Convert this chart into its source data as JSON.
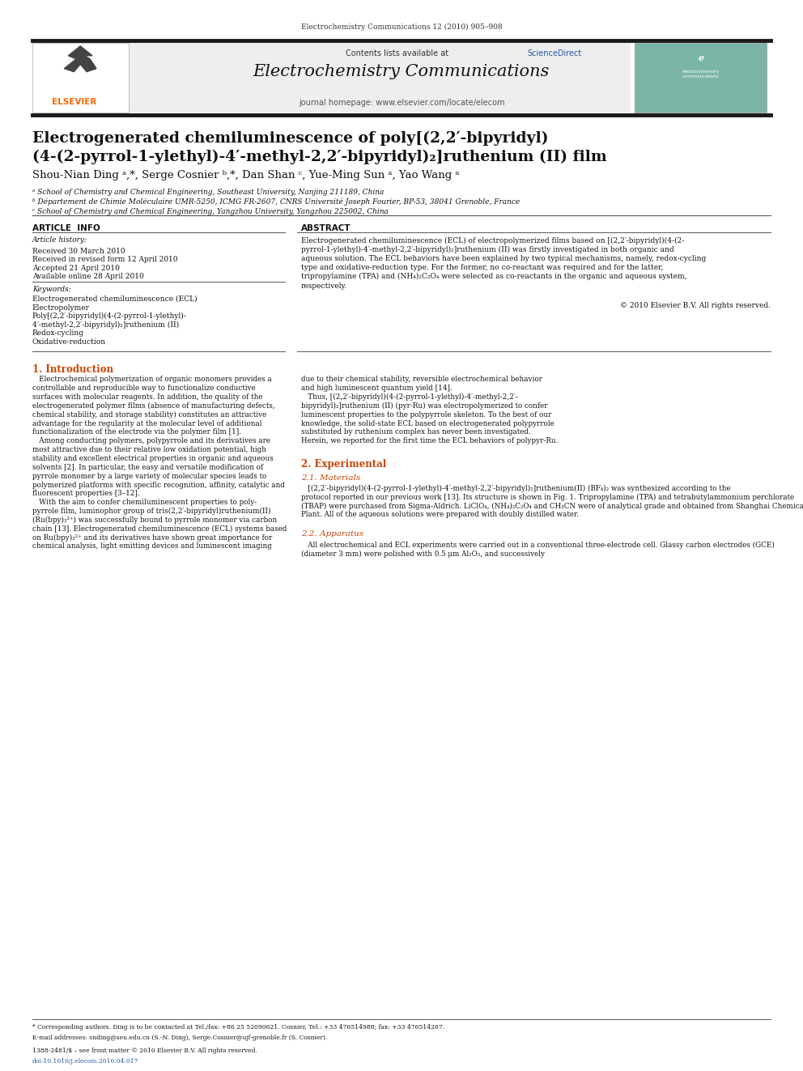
{
  "page_width": 9.92,
  "page_height": 13.23,
  "bg_color": "#ffffff",
  "journal_header": "Electrochemistry Communications 12 (2010) 905–908",
  "journal_name": "Electrochemistry Communications",
  "contents_line": "Contents lists available at ScienceDirect",
  "sciencedirect_color": "#2255aa",
  "journal_homepage": "journal homepage: www.elsevier.com/locate/elecom",
  "header_bg": "#eeeeee",
  "top_bar_color": "#1a1a1a",
  "elsevier_color": "#ff6600",
  "title_line1": "Electrogenerated chemiluminescence of poly[(2,2′-bipyridyl)",
  "title_line2": "(4-(2-pyrrol-1-ylethyl)-4′-methyl-2,2′-bipyridyl)₂]ruthenium (II) film",
  "authors": "Shou-Nian Ding ᵃ,*, Serge Cosnier ᵇ,*, Dan Shan ᶜ, Yue-Ming Sun ᵃ, Yao Wang ᵃ",
  "affil_a": "ᵃ School of Chemistry and Chemical Engineering, Southeast University, Nanjing 211189, China",
  "affil_b": "ᵇ Département de Chimie Moléculaire UMR-5250, ICMG FR-2607, CNRS Université Joseph Fourier, BP-53, 38041 Grenoble, France",
  "affil_c": "ᶜ School of Chemistry and Chemical Engineering, Yangzhou University, Yangzhou 225002, China",
  "article_info_label": "ARTICLE  INFO",
  "abstract_label": "ABSTRACT",
  "article_history_label": "Article history:",
  "received1": "Received 30 March 2010",
  "received2": "Received in revised form 12 April 2010",
  "accepted": "Accepted 21 April 2010",
  "available": "Available online 28 April 2010",
  "keywords_label": "Keywords:",
  "kw1": "Electrogenerated chemiluminescence (ECL)",
  "kw2": "Electropolymer",
  "kw3a": "Poly[(2,2′-bipyridyl)(4-(2-pyrrol-1-ylethyl)-",
  "kw3b": "4′-methyl-2,2′-bipyridyl)₂]ruthenium (II)",
  "kw4": "Redox-cycling",
  "kw5": "Oxidative-reduction",
  "abstract_text_lines": [
    "Electrogenerated chemiluminescence (ECL) of electropolymerized films based on [(2,2′-bipyridyl)(4-(2-",
    "pyrrol-1-ylethyl)-4′-methyl-2,2′-bipyridyl)₂]ruthenium (II) was firstly investigated in both organic and",
    "aqueous solution. The ECL behaviors have been explained by two typical mechanisms, namely, redox-cycling",
    "type and oxidative-reduction type. For the former, no co-reactant was required and for the latter,",
    "tripropylamine (TPA) and (NH₄)₂C₂O₄ were selected as co-reactants in the organic and aqueous system,",
    "respectively."
  ],
  "copyright": "© 2010 Elsevier B.V. All rights reserved.",
  "intro_heading": "1. Introduction",
  "intro_col1_lines": [
    "   Electrochemical polymerization of organic monomers provides a",
    "controllable and reproducible way to functionalize conductive",
    "surfaces with molecular reagents. In addition, the quality of the",
    "electrogenerated polymer films (absence of manufacturing defects,",
    "chemical stability, and storage stability) constitutes an attractive",
    "advantage for the regularity at the molecular level of additional",
    "functionalization of the electrode via the polymer film [1].",
    "   Among conducting polymers, polypyrrole and its derivatives are",
    "most attractive due to their relative low oxidation potential, high",
    "stability and excellent electrical properties in organic and aqueous",
    "solvents [2]. In particular, the easy and versatile modification of",
    "pyrrole monomer by a large variety of molecular species leads to",
    "polymerized platforms with specific recognition, affinity, catalytic and",
    "fluorescent properties [3–12].",
    "   With the aim to confer chemiluminescent properties to poly-",
    "pyrrole film, luminophor group of tris(2,2′-bipyridyl)ruthenium(II)",
    "(Ru(bpy)₃²⁺) was successfully bound to pyrrole monomer via carbon",
    "chain [13]. Electrogenerated chemiluminescence (ECL) systems based",
    "on Ru(bpy)₃²⁺ and its derivatives have shown great importance for",
    "chemical analysis, light emitting devices and luminescent imaging"
  ],
  "intro_col2_lines": [
    "due to their chemical stability, reversible electrochemical behavior",
    "and high luminescent quantum yield [14].",
    "   Thus, [(2,2′-bipyridyl)(4-(2-pyrrol-1-ylethyl)-4′-methyl-2,2′-",
    "bipyridyl)₂]ruthenium (II) (pyr-Ru) was electropolymerized to confer",
    "luminescent properties to the polypyrrole skeleton. To the best of our",
    "knowledge, the solid-state ECL based on electrogenerated polypyrrole",
    "substituted by ruthenium complex has never been investigated.",
    "Herein, we reported for the first time the ECL behaviors of polypyr-Ru."
  ],
  "experimental_heading": "2. Experimental",
  "materials_heading": "2.1. Materials",
  "materials_lines": [
    "   [(2,2′-bipyridyl)(4-(2-pyrrol-1-ylethyl)-4′-methyl-2,2′-bipyridyl)₂]ruthenium(II) (BF₄)₂ was synthesized according to the",
    "protocol reported in our previous work [13]. Its structure is shown in Fig. 1. Tripropylamine (TPA) and tetrabutylammonium perchlorate",
    "(TBAP) were purchased from Sigma-Aldrich. LiClO₄, (NH₄)₂C₂O₄ and CH₃CN were of analytical grade and obtained from Shanghai Chemical",
    "Plant. All of the aqueous solutions were prepared with doubly distilled water."
  ],
  "apparatus_heading": "2.2. Apparatus",
  "apparatus_lines": [
    "   All electrochemical and ECL experiments were carried out in a conventional three-electrode cell. Glassy carbon electrodes (GCE)",
    "(diameter 3 mm) were polished with 0.5 μm Al₂O₃, and successively"
  ],
  "footnote_corr": "* Corresponding authors. Ding is to be contacted at Tel./fax: +86 25 52090621. Cosnier, Tel.: +33 476514988; fax: +33 476514267.",
  "footnote_email": "E-mail addresses: snding@seu.edu.cn (S.-N. Ding), Serge.Cosnier@ujf-grenoble.fr (S. Cosnier).",
  "issn_line": "1388-2481/$ – see front matter © 2010 Elsevier B.V. All rights reserved.",
  "doi_line": "doi:10.1016/j.elecom.2010.04.017",
  "section_color": "#cc4400",
  "intro_color": "#cc4400"
}
